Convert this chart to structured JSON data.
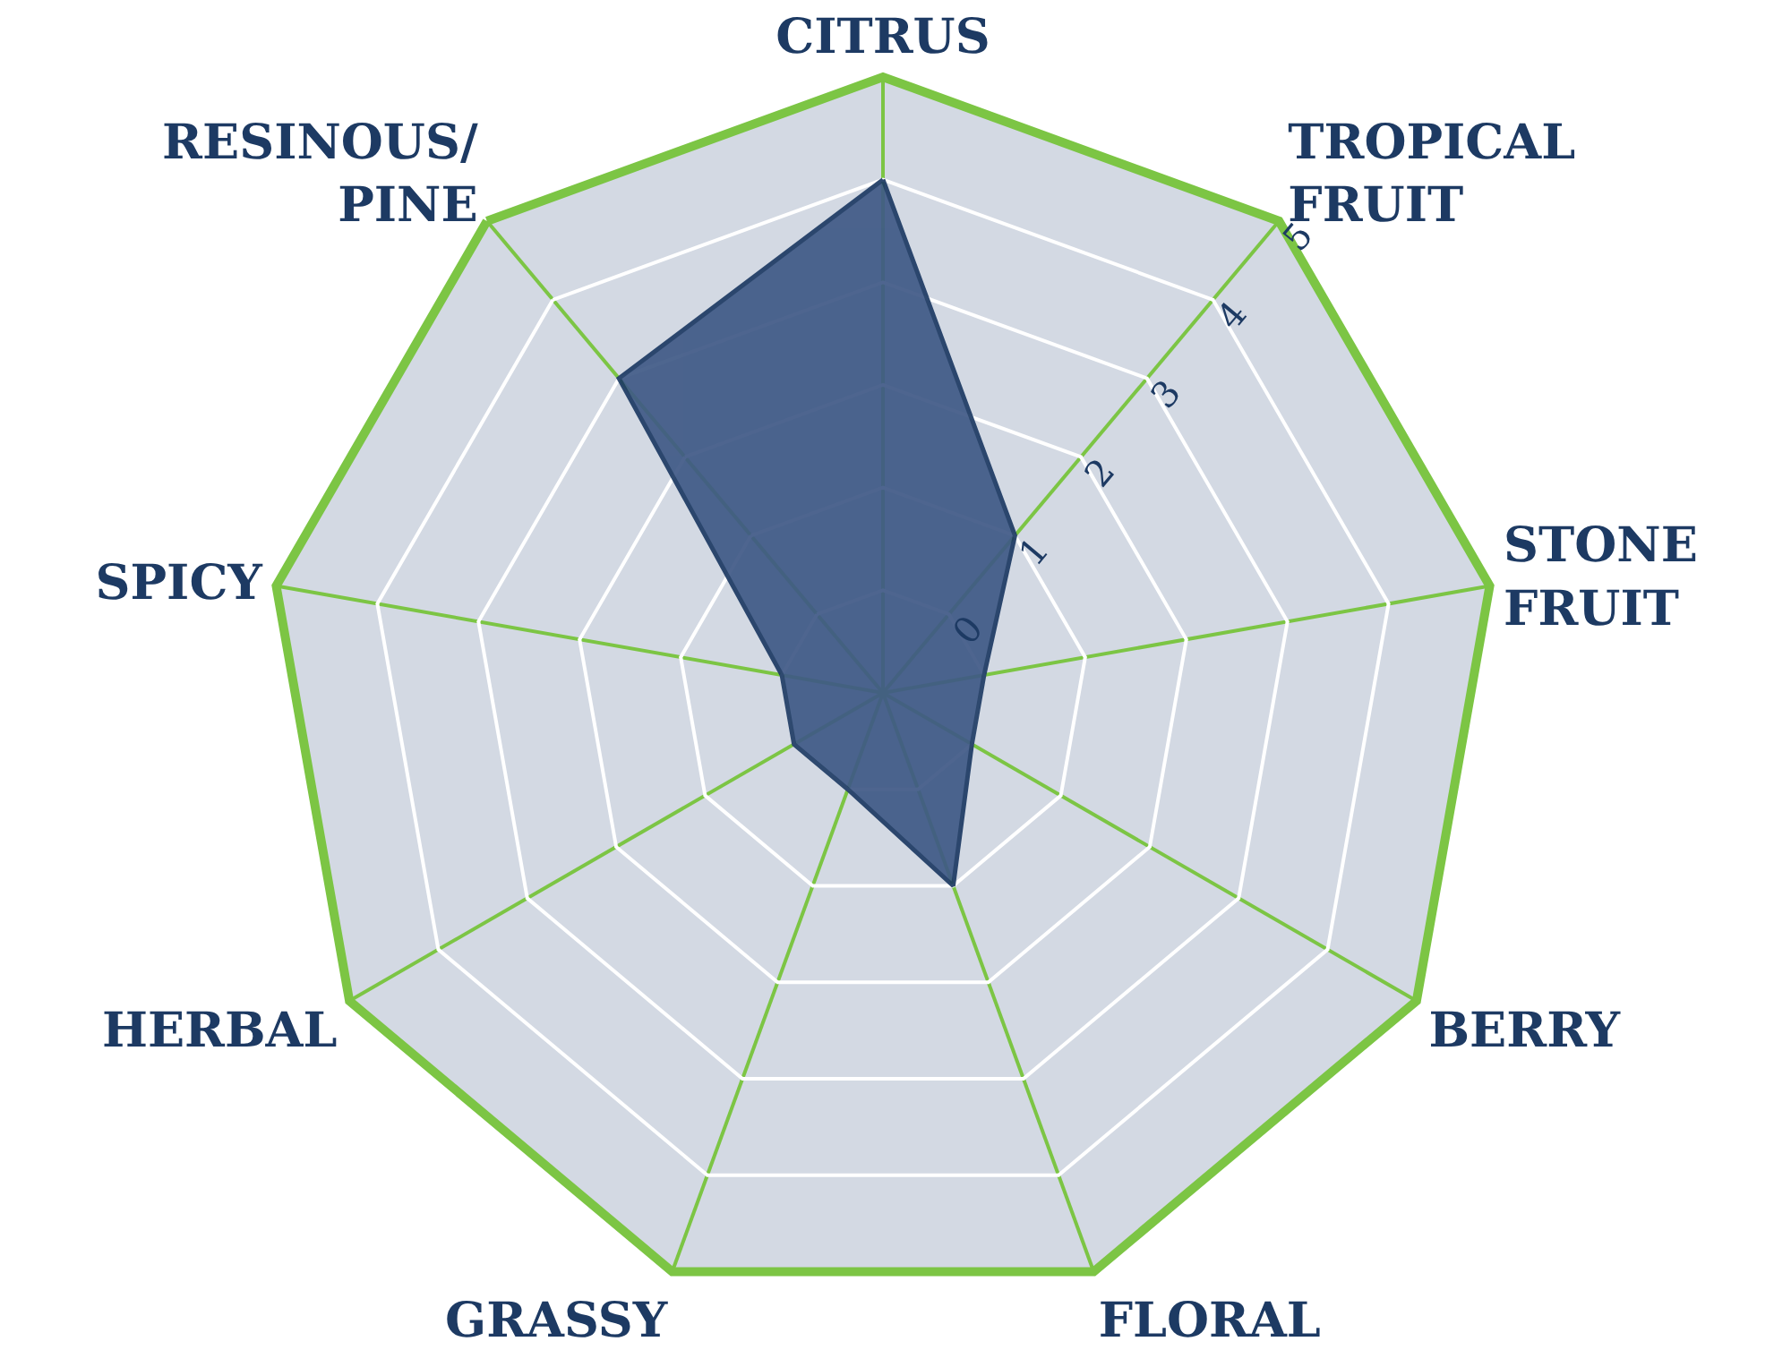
{
  "chart_data": {
    "type": "radar",
    "categories": [
      "CITRUS",
      "TROPICAL FRUIT",
      "STONE FRUIT",
      "BERRY",
      "FLORAL",
      "GRASSY",
      "HERBAL",
      "SPICY",
      "RESINOUS/ PINE"
    ],
    "series": [
      {
        "color": "#3f5986",
        "values": [
          4,
          1,
          0,
          0,
          1,
          0,
          0,
          0,
          3
        ]
      }
    ],
    "ylim": [
      -1,
      5
    ],
    "yticks": [
      0,
      1,
      2,
      3,
      4,
      5
    ],
    "grid": true
  }
}
